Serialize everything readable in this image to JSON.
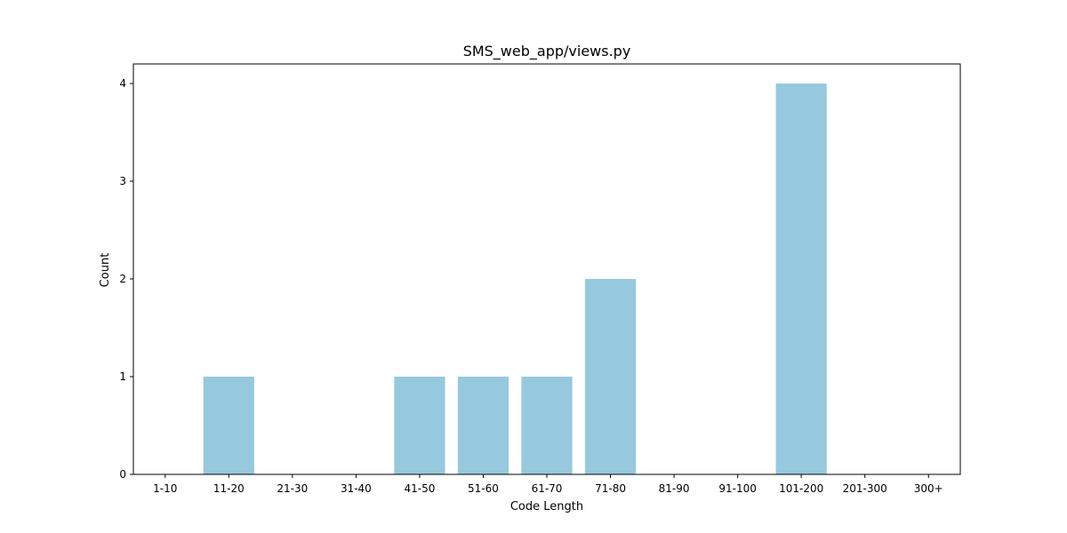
{
  "chart_data": {
    "type": "bar",
    "title": "SMS_web_app/views.py",
    "xlabel": "Code Length",
    "ylabel": "Count",
    "categories": [
      "1-10",
      "11-20",
      "21-30",
      "31-40",
      "41-50",
      "51-60",
      "61-70",
      "71-80",
      "81-90",
      "91-100",
      "101-200",
      "201-300",
      "300+"
    ],
    "values": [
      0,
      1,
      0,
      0,
      1,
      1,
      1,
      2,
      0,
      0,
      4,
      0,
      0
    ],
    "ylim": [
      0,
      4.2
    ],
    "yticks": [
      "0",
      "1",
      "2",
      "3",
      "4"
    ],
    "bar_color": "#96c9dd",
    "grid": false,
    "legend": "none"
  }
}
